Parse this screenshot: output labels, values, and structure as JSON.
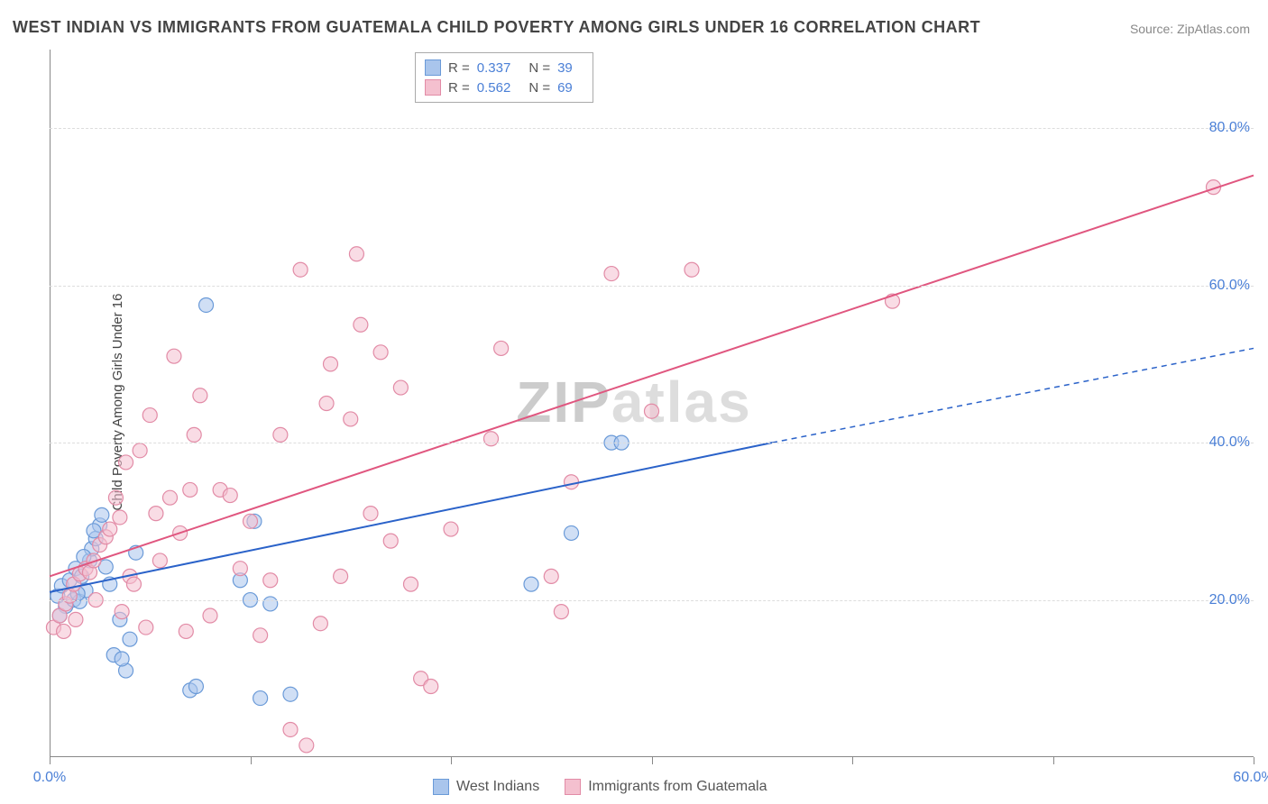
{
  "header": {
    "title": "WEST INDIAN VS IMMIGRANTS FROM GUATEMALA CHILD POVERTY AMONG GIRLS UNDER 16 CORRELATION CHART",
    "source_prefix": "Source: ",
    "source_name": "ZipAtlas.com"
  },
  "watermark": {
    "z": "ZIP",
    "rest": "atlas"
  },
  "chart": {
    "type": "scatter",
    "ylabel": "Child Poverty Among Girls Under 16",
    "xlim": [
      0,
      60
    ],
    "ylim": [
      0,
      90
    ],
    "xtick_positions": [
      0,
      10,
      20,
      30,
      40,
      50,
      60
    ],
    "xtick_labels": {
      "0": "0.0%",
      "60": "60.0%"
    },
    "ytick_positions": [
      20,
      40,
      60,
      80
    ],
    "ytick_labels": {
      "20": "20.0%",
      "40": "40.0%",
      "60": "60.0%",
      "80": "80.0%"
    },
    "grid_color": "#dddddd",
    "axis_color": "#888888",
    "marker_radius": 8,
    "marker_opacity": 0.55,
    "line_width": 2,
    "series": [
      {
        "key": "west_indians",
        "label": "West Indians",
        "color_fill": "#a9c5ec",
        "color_stroke": "#6a9ad8",
        "line_color": "#2a62c9",
        "r_value": "0.337",
        "n_value": "39",
        "points": [
          [
            0.4,
            20.5
          ],
          [
            0.6,
            21.8
          ],
          [
            0.8,
            19.2
          ],
          [
            1.0,
            22.5
          ],
          [
            1.2,
            20.0
          ],
          [
            1.3,
            24.0
          ],
          [
            1.5,
            19.8
          ],
          [
            1.6,
            23.0
          ],
          [
            1.8,
            21.2
          ],
          [
            2.0,
            25.0
          ],
          [
            2.1,
            26.5
          ],
          [
            2.3,
            27.8
          ],
          [
            2.5,
            29.5
          ],
          [
            2.6,
            30.8
          ],
          [
            2.8,
            24.2
          ],
          [
            3.0,
            22.0
          ],
          [
            3.2,
            13.0
          ],
          [
            3.5,
            17.5
          ],
          [
            3.8,
            11.0
          ],
          [
            4.0,
            15.0
          ],
          [
            4.3,
            26.0
          ],
          [
            7.0,
            8.5
          ],
          [
            7.3,
            9.0
          ],
          [
            7.8,
            57.5
          ],
          [
            9.5,
            22.5
          ],
          [
            10.0,
            20.0
          ],
          [
            10.2,
            30.0
          ],
          [
            10.5,
            7.5
          ],
          [
            11.0,
            19.5
          ],
          [
            12.0,
            8.0
          ],
          [
            24.0,
            22.0
          ],
          [
            26.0,
            28.5
          ],
          [
            28.0,
            40.0
          ],
          [
            28.5,
            40.0
          ],
          [
            0.5,
            18.0
          ],
          [
            1.4,
            20.8
          ],
          [
            2.2,
            28.8
          ],
          [
            1.7,
            25.5
          ],
          [
            3.6,
            12.5
          ]
        ],
        "trend": {
          "x1": 0,
          "y1": 21,
          "x2": 36,
          "y2": 40,
          "dash_x2": 60,
          "dash_y2": 52
        }
      },
      {
        "key": "guatemala",
        "label": "Immigrants from Guatemala",
        "color_fill": "#f4c0cf",
        "color_stroke": "#e28ba6",
        "line_color": "#e0567f",
        "r_value": "0.562",
        "n_value": "69",
        "points": [
          [
            0.2,
            16.5
          ],
          [
            0.5,
            18.0
          ],
          [
            0.8,
            19.5
          ],
          [
            1.0,
            20.5
          ],
          [
            1.2,
            22.0
          ],
          [
            1.5,
            23.3
          ],
          [
            1.8,
            24.0
          ],
          [
            2.0,
            23.5
          ],
          [
            2.2,
            25.0
          ],
          [
            2.5,
            27.0
          ],
          [
            2.8,
            28.0
          ],
          [
            3.0,
            29.0
          ],
          [
            3.3,
            33.0
          ],
          [
            3.5,
            30.5
          ],
          [
            3.8,
            37.5
          ],
          [
            4.0,
            23.0
          ],
          [
            4.2,
            22.0
          ],
          [
            4.5,
            39.0
          ],
          [
            5.0,
            43.5
          ],
          [
            5.3,
            31.0
          ],
          [
            5.5,
            25.0
          ],
          [
            6.0,
            33.0
          ],
          [
            6.2,
            51.0
          ],
          [
            6.5,
            28.5
          ],
          [
            7.0,
            34.0
          ],
          [
            7.2,
            41.0
          ],
          [
            7.5,
            46.0
          ],
          [
            8.0,
            18.0
          ],
          [
            8.5,
            34.0
          ],
          [
            9.0,
            33.3
          ],
          [
            9.5,
            24.0
          ],
          [
            10.0,
            30.0
          ],
          [
            10.5,
            15.5
          ],
          [
            11.0,
            22.5
          ],
          [
            11.5,
            41.0
          ],
          [
            12.0,
            3.5
          ],
          [
            12.5,
            62.0
          ],
          [
            12.8,
            1.5
          ],
          [
            13.5,
            17.0
          ],
          [
            14.0,
            50.0
          ],
          [
            14.5,
            23.0
          ],
          [
            15.0,
            43.0
          ],
          [
            15.3,
            64.0
          ],
          [
            15.5,
            55.0
          ],
          [
            16.0,
            31.0
          ],
          [
            16.5,
            51.5
          ],
          [
            17.0,
            27.5
          ],
          [
            17.5,
            47.0
          ],
          [
            18.0,
            22.0
          ],
          [
            18.5,
            10.0
          ],
          [
            19.0,
            9.0
          ],
          [
            20.0,
            29.0
          ],
          [
            22.0,
            40.5
          ],
          [
            22.5,
            52.0
          ],
          [
            25.0,
            23.0
          ],
          [
            25.5,
            18.5
          ],
          [
            26.0,
            35.0
          ],
          [
            28.0,
            61.5
          ],
          [
            30.0,
            44.0
          ],
          [
            32.0,
            62.0
          ],
          [
            42.0,
            58.0
          ],
          [
            58.0,
            72.5
          ],
          [
            4.8,
            16.5
          ],
          [
            6.8,
            16.0
          ],
          [
            3.6,
            18.5
          ],
          [
            2.3,
            20.0
          ],
          [
            1.3,
            17.5
          ],
          [
            0.7,
            16.0
          ],
          [
            13.8,
            45.0
          ]
        ],
        "trend": {
          "x1": 0,
          "y1": 23,
          "x2": 60,
          "y2": 74
        }
      }
    ]
  }
}
